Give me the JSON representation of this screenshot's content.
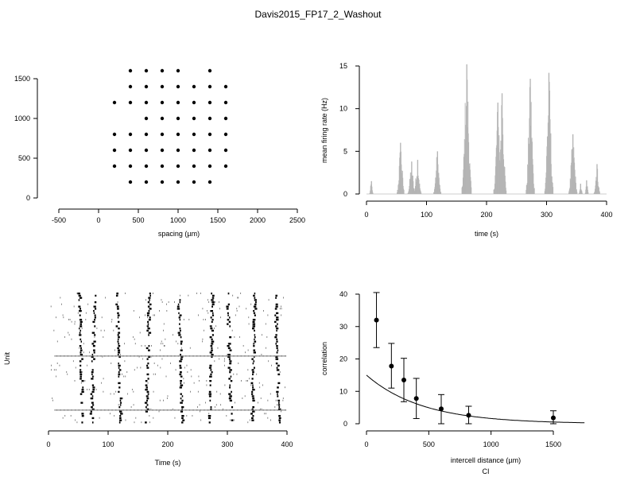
{
  "title": "Davis2015_FP17_2_Washout",
  "chart_data": [
    {
      "type": "scatter",
      "xlabel": "spacing (µm)",
      "ylabel": "",
      "xlim": [
        -500,
        2500
      ],
      "ylim": [
        0,
        1600
      ],
      "xticks": [
        -500,
        0,
        500,
        1000,
        1500,
        2000,
        2500
      ],
      "yticks": [
        0,
        500,
        1000,
        1500
      ],
      "points": [
        [
          400,
          1600
        ],
        [
          600,
          1600
        ],
        [
          800,
          1600
        ],
        [
          1000,
          1600
        ],
        [
          1400,
          1600
        ],
        [
          400,
          1400
        ],
        [
          600,
          1400
        ],
        [
          800,
          1400
        ],
        [
          1000,
          1400
        ],
        [
          1200,
          1400
        ],
        [
          1400,
          1400
        ],
        [
          1600,
          1400
        ],
        [
          200,
          1200
        ],
        [
          400,
          1200
        ],
        [
          600,
          1200
        ],
        [
          800,
          1200
        ],
        [
          1000,
          1200
        ],
        [
          1200,
          1200
        ],
        [
          1400,
          1200
        ],
        [
          1600,
          1200
        ],
        [
          600,
          1000
        ],
        [
          800,
          1000
        ],
        [
          1000,
          1000
        ],
        [
          1200,
          1000
        ],
        [
          1400,
          1000
        ],
        [
          1600,
          1000
        ],
        [
          200,
          800
        ],
        [
          400,
          800
        ],
        [
          600,
          800
        ],
        [
          800,
          800
        ],
        [
          1000,
          800
        ],
        [
          1200,
          800
        ],
        [
          1400,
          800
        ],
        [
          1600,
          800
        ],
        [
          200,
          600
        ],
        [
          400,
          600
        ],
        [
          600,
          600
        ],
        [
          800,
          600
        ],
        [
          1000,
          600
        ],
        [
          1200,
          600
        ],
        [
          1400,
          600
        ],
        [
          1600,
          600
        ],
        [
          200,
          400
        ],
        [
          400,
          400
        ],
        [
          600,
          400
        ],
        [
          800,
          400
        ],
        [
          1000,
          400
        ],
        [
          1200,
          400
        ],
        [
          1400,
          400
        ],
        [
          1600,
          400
        ],
        [
          400,
          200
        ],
        [
          600,
          200
        ],
        [
          800,
          200
        ],
        [
          1000,
          200
        ],
        [
          1200,
          200
        ],
        [
          1400,
          200
        ]
      ]
    },
    {
      "type": "bar",
      "xlabel": "time (s)",
      "ylabel": "mean firing rate (Hz)",
      "xlim": [
        0,
        400
      ],
      "ylim": [
        0,
        15
      ],
      "xticks": [
        0,
        100,
        200,
        300,
        400
      ],
      "yticks": [
        0,
        5,
        10,
        15
      ],
      "bursts": [
        {
          "center": 8,
          "peak": 1.5,
          "width": 3
        },
        {
          "center": 57,
          "peak": 6.0,
          "width": 6
        },
        {
          "center": 75,
          "peak": 3.8,
          "width": 6
        },
        {
          "center": 85,
          "peak": 4.0,
          "width": 6
        },
        {
          "center": 118,
          "peak": 5.0,
          "width": 6
        },
        {
          "center": 167,
          "peak": 15.2,
          "width": 8
        },
        {
          "center": 219,
          "peak": 10.7,
          "width": 7
        },
        {
          "center": 226,
          "peak": 11.8,
          "width": 7
        },
        {
          "center": 273,
          "peak": 13.5,
          "width": 7
        },
        {
          "center": 304,
          "peak": 14.2,
          "width": 7
        },
        {
          "center": 344,
          "peak": 7.0,
          "width": 7
        },
        {
          "center": 357,
          "peak": 1.2,
          "width": 3
        },
        {
          "center": 367,
          "peak": 1.6,
          "width": 3
        },
        {
          "center": 384,
          "peak": 3.5,
          "width": 5
        }
      ]
    },
    {
      "type": "scatter",
      "xlabel": "Time (s)",
      "ylabel": "Unit",
      "xlim": [
        0,
        400
      ],
      "xticks": [
        0,
        100,
        200,
        300,
        400
      ],
      "burst_times": [
        55,
        75,
        118,
        167,
        222,
        273,
        304,
        344,
        384
      ]
    },
    {
      "type": "scatter",
      "xlabel": "intercell distance (µm)",
      "ylabel": "correlation",
      "caption": "CI",
      "xlim": [
        0,
        1750
      ],
      "ylim": [
        0,
        40
      ],
      "xticks": [
        0,
        500,
        1000,
        1500
      ],
      "yticks": [
        0,
        10,
        20,
        30,
        40
      ],
      "points": [
        {
          "x": 80,
          "y": 32.0,
          "lo": 23.5,
          "hi": 40.5
        },
        {
          "x": 200,
          "y": 17.8,
          "lo": 11.0,
          "hi": 24.8
        },
        {
          "x": 300,
          "y": 13.5,
          "lo": 6.8,
          "hi": 20.2
        },
        {
          "x": 400,
          "y": 7.8,
          "lo": 1.6,
          "hi": 14.0
        },
        {
          "x": 600,
          "y": 4.6,
          "lo": 0.0,
          "hi": 9.0
        },
        {
          "x": 820,
          "y": 2.6,
          "lo": 0.0,
          "hi": 5.4
        },
        {
          "x": 1500,
          "y": 1.8,
          "lo": 0.0,
          "hi": 4.0
        }
      ],
      "fit": {
        "amplitude": 15.0,
        "decay": 450
      }
    }
  ]
}
